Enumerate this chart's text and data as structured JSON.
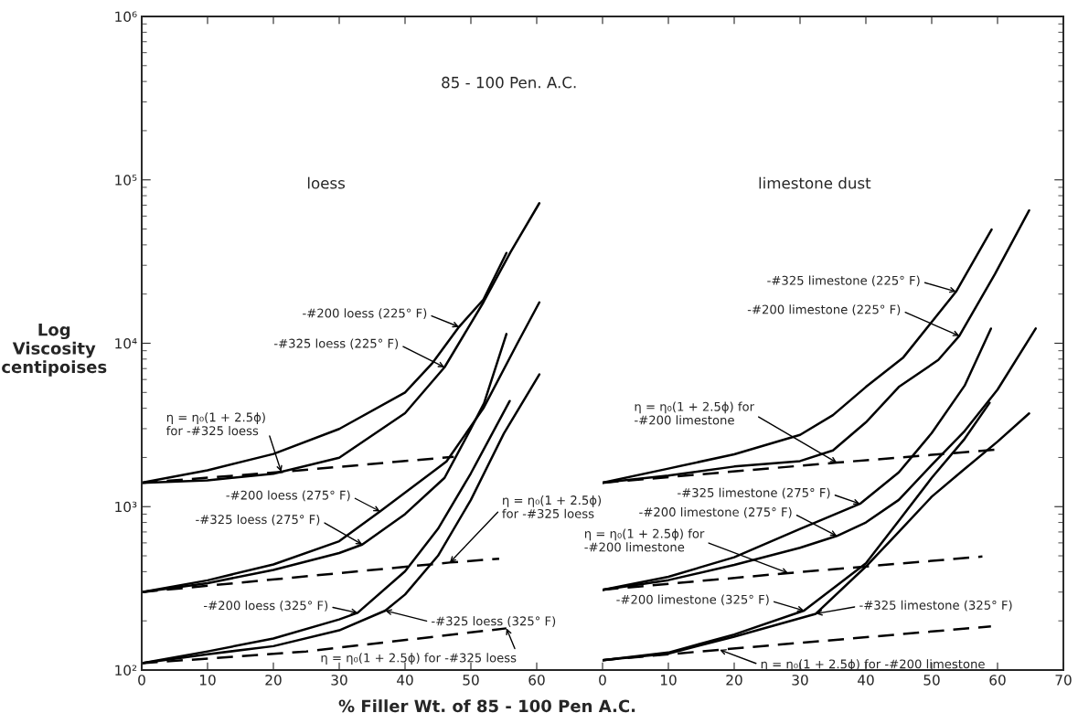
{
  "chart_data": [
    {
      "type": "line",
      "title": "85 - 100 Pen. A.C.",
      "subtitle": "loess",
      "xlabel": "% Filler Wt. of 85 - 100 Pen A.C.",
      "ylabel": "Log\nViscosity\ncentipoises",
      "log": "y",
      "xlim": [
        0,
        70
      ],
      "xticks": [
        0,
        10,
        20,
        30,
        40,
        50,
        60
      ],
      "ylim": [
        100,
        1000000
      ],
      "yticks": [
        {
          "value": 100,
          "label": "10²"
        },
        {
          "value": 1000,
          "label": "10³"
        },
        {
          "value": 10000,
          "label": "10⁴"
        },
        {
          "value": 100000,
          "label": "10⁵"
        },
        {
          "value": 1000000,
          "label": "10⁶"
        }
      ],
      "series": [
        {
          "color": "#000000",
          "line_style": "solid",
          "x": [
            0,
            10,
            20,
            30,
            40,
            44.2,
            48.2,
            51.9,
            55.4
          ],
          "values": [
            1400,
            1670,
            2100,
            2990,
            5000,
            7600,
            12600,
            18500,
            35700
          ]
        },
        {
          "color": "#000000",
          "line_style": "solid",
          "x": [
            0,
            10,
            20,
            30,
            40,
            46,
            51.9,
            56,
            60.4
          ],
          "values": [
            1400,
            1450,
            1590,
            1990,
            3730,
            7130,
            17800,
            36000,
            72000
          ]
        },
        {
          "color": "#000000",
          "line_style": "dashed",
          "x": [
            0,
            21.2,
            47.4
          ],
          "values": [
            1400,
            1630,
            2020
          ]
        },
        {
          "color": "#000000",
          "line_style": "solid",
          "x": [
            0,
            10,
            20,
            30,
            36.2,
            46.3,
            51.9,
            57,
            60.4
          ],
          "values": [
            300,
            354,
            443,
            614,
            935,
            1890,
            4000,
            9870,
            17800
          ]
        },
        {
          "color": "#000000",
          "line_style": "solid",
          "x": [
            0,
            10,
            20,
            30,
            33.5,
            40,
            46,
            50,
            52,
            55.4
          ],
          "values": [
            300,
            340,
            410,
            520,
            586,
            900,
            1500,
            3000,
            4300,
            11400
          ]
        },
        {
          "color": "#000000",
          "line_style": "dashed",
          "x": [
            0,
            46.8,
            54.3
          ],
          "values": [
            300,
            455,
            480
          ]
        },
        {
          "color": "#000000",
          "line_style": "solid",
          "x": [
            0,
            10,
            20,
            30,
            32.8,
            40,
            45,
            50,
            55.9
          ],
          "values": [
            110,
            130,
            156,
            204,
            224,
            402,
            731,
            1600,
            4430
          ]
        },
        {
          "color": "#000000",
          "line_style": "solid",
          "x": [
            0,
            10,
            20,
            30,
            37,
            40,
            45,
            50,
            55,
            60.4
          ],
          "values": [
            110,
            125,
            140,
            175,
            231,
            290,
            500,
            1100,
            2800,
            6450
          ]
        },
        {
          "color": "#000000",
          "line_style": "dashed",
          "x": [
            0,
            25,
            55.4
          ],
          "values": [
            110,
            130,
            180
          ]
        }
      ],
      "annotations": [
        {
          "text": "-#200 loess (225° F)",
          "x": 48.2,
          "y": 12600
        },
        {
          "text": "-#325 loess (225° F)",
          "x": 46,
          "y": 7130
        },
        {
          "text": "η = η₀(1 + 2.5ϕ)\nfor -#325 loess",
          "x": 21.2,
          "y": 1630
        },
        {
          "text": "-#200 loess (275° F)",
          "x": 36.2,
          "y": 935
        },
        {
          "text": "-#325 loess (275° F)",
          "x": 33.5,
          "y": 586
        },
        {
          "text": "η = η₀(1 + 2.5ϕ)\nfor -#325 loess",
          "x": 46.8,
          "y": 455
        },
        {
          "text": "-#200 loess (325° F)",
          "x": 32.8,
          "y": 224
        },
        {
          "text": "-#325 loess (325° F)",
          "x": 37,
          "y": 231
        },
        {
          "text": "η = η₀(1 + 2.5ϕ) for -#325 loess",
          "x": 55.4,
          "y": 180
        }
      ]
    },
    {
      "type": "line",
      "subtitle": "limestone dust",
      "log": "y",
      "tick_labels": "x",
      "xlim": [
        0,
        70
      ],
      "xticks": [
        0,
        10,
        20,
        30,
        40,
        50,
        60,
        70
      ],
      "ylim": [
        100,
        1000000
      ],
      "yticks": [
        {
          "value": 100,
          "label": null
        },
        {
          "value": 1000,
          "label": null
        },
        {
          "value": 10000,
          "label": null
        },
        {
          "value": 100000,
          "label": null
        },
        {
          "value": 1000000,
          "label": null
        }
      ],
      "series": [
        {
          "color": "#000000",
          "line_style": "solid",
          "x": [
            0,
            10,
            20,
            30,
            35,
            40,
            45.7,
            53.7,
            59.1
          ],
          "values": [
            1400,
            1710,
            2090,
            2750,
            3630,
            5400,
            8200,
            20700,
            49700
          ]
        },
        {
          "color": "#000000",
          "line_style": "solid",
          "x": [
            0,
            10,
            20,
            30,
            35,
            40,
            45,
            51,
            54.2,
            59.6,
            64.8
          ],
          "values": [
            1400,
            1550,
            1760,
            1900,
            2210,
            3280,
            5400,
            7900,
            11100,
            26500,
            65000
          ]
        },
        {
          "color": "#000000",
          "line_style": "dashed",
          "x": [
            0,
            35.6,
            60.1
          ],
          "values": [
            1400,
            1860,
            2240
          ]
        },
        {
          "color": "#000000",
          "line_style": "solid",
          "x": [
            0,
            10,
            20,
            30,
            39.1,
            45,
            50,
            55,
            59
          ],
          "values": [
            310,
            372,
            490,
            730,
            1040,
            1620,
            2820,
            5500,
            12300
          ]
        },
        {
          "color": "#000000",
          "line_style": "solid",
          "x": [
            0,
            10,
            20,
            30,
            35.6,
            40,
            45,
            50,
            55,
            60,
            65.8
          ],
          "values": [
            310,
            355,
            440,
            560,
            662,
            800,
            1100,
            1800,
            2900,
            5200,
            12300
          ]
        },
        {
          "color": "#000000",
          "line_style": "dashed",
          "x": [
            0,
            28.2,
            57.7
          ],
          "values": [
            310,
            392,
            495
          ]
        },
        {
          "color": "#000000",
          "line_style": "solid",
          "x": [
            0,
            10,
            20,
            30.6,
            40,
            45,
            50,
            55,
            58.8
          ],
          "values": [
            115,
            128,
            165,
            231,
            450,
            820,
            1500,
            2600,
            4320
          ]
        },
        {
          "color": "#000000",
          "line_style": "solid",
          "x": [
            0,
            10,
            20,
            32.4,
            40,
            45,
            50,
            55,
            60,
            64.8
          ],
          "values": [
            115,
            126,
            160,
            221,
            430,
            700,
            1150,
            1700,
            2500,
            3720
          ]
        },
        {
          "color": "#000000",
          "line_style": "dashed",
          "x": [
            0,
            17.8,
            59
          ],
          "values": [
            115,
            133,
            185
          ]
        }
      ],
      "annotations": [
        {
          "text": "-#325 limestone (225° F)",
          "x": 53.7,
          "y": 20700
        },
        {
          "text": "-#200 limestone (225° F)",
          "x": 54.2,
          "y": 11100
        },
        {
          "text": "η = η₀(1 + 2.5ϕ) for\n-#200 limestone",
          "x": 35.6,
          "y": 1860
        },
        {
          "text": "-#325 limestone (275° F)",
          "x": 39.1,
          "y": 1040
        },
        {
          "text": "-#200 limestone (275° F)",
          "x": 35.6,
          "y": 662
        },
        {
          "text": "η = η₀(1 + 2.5ϕ) for\n-#200 limestone",
          "x": 28.2,
          "y": 392
        },
        {
          "text": "-#200 limestone (325° F)",
          "x": 30.6,
          "y": 231
        },
        {
          "text": "-#325 limestone (325° F)",
          "x": 32.4,
          "y": 221
        },
        {
          "text": "η = η₀(1 + 2.5ϕ) for -#200 limestone",
          "x": 17.8,
          "y": 133
        }
      ]
    }
  ]
}
